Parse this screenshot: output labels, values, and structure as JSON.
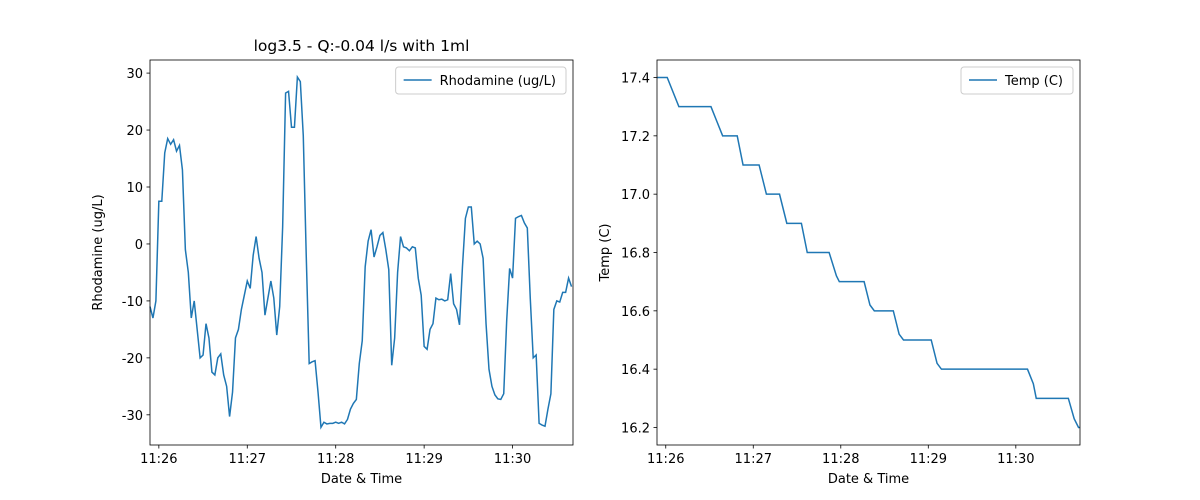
{
  "chart_data": [
    {
      "type": "line",
      "title": "log3.5 - Q:-0.04 l/s with 1ml",
      "x_label": "Date & Time",
      "y_label": "Rhodamine (ug/L)",
      "x": [
        1554,
        1556,
        1558,
        1560,
        1562,
        1564,
        1566,
        1568,
        1570,
        1572,
        1574,
        1576,
        1578,
        1580,
        1582,
        1584,
        1586,
        1588,
        1590,
        1592,
        1594,
        1596,
        1598,
        1600,
        1602,
        1604,
        1606,
        1608,
        1610,
        1612,
        1614,
        1616,
        1618,
        1620,
        1622,
        1624,
        1626,
        1628,
        1630,
        1632,
        1634,
        1636,
        1638,
        1640,
        1642,
        1644,
        1646,
        1648,
        1650,
        1652,
        1654,
        1656,
        1658,
        1660,
        1662,
        1664,
        1666,
        1668,
        1670,
        1672,
        1674,
        1676,
        1678,
        1680,
        1682,
        1684,
        1686,
        1688,
        1690,
        1692,
        1694,
        1696,
        1698,
        1700,
        1702,
        1704,
        1706,
        1708,
        1710,
        1712,
        1714,
        1716,
        1718,
        1720,
        1722,
        1724,
        1726,
        1728,
        1730,
        1732,
        1734,
        1736,
        1738,
        1740,
        1742,
        1744,
        1746,
        1748,
        1750,
        1752,
        1754,
        1756,
        1758,
        1760,
        1762,
        1764,
        1766,
        1768,
        1770,
        1772,
        1774,
        1776,
        1778,
        1780,
        1782,
        1784,
        1786,
        1788,
        1790,
        1792,
        1794,
        1796,
        1798,
        1800,
        1802,
        1804,
        1806,
        1808,
        1810,
        1812,
        1814,
        1816,
        1818,
        1820,
        1822,
        1824,
        1826,
        1828,
        1830,
        1832,
        1834,
        1836,
        1838,
        1840
      ],
      "series": [
        {
          "name": "Rhodamine (ug/L)",
          "color": "#1f77b4",
          "values": [
            -11,
            -13,
            -10,
            7.5,
            7.5,
            16,
            18.5,
            17.5,
            18.3,
            16.3,
            17.3,
            13,
            -1,
            -5,
            -13,
            -10,
            -15,
            -20,
            -19.5,
            -14,
            -16.5,
            -22.5,
            -23,
            -20,
            -19.3,
            -23,
            -25,
            -30.3,
            -26,
            -16.5,
            -15,
            -11.5,
            -9,
            -6.5,
            -7.8,
            -2,
            1.3,
            -2.5,
            -5,
            -12.5,
            -9.5,
            -6.5,
            -9.5,
            -16,
            -11,
            3,
            26.5,
            26.8,
            20.5,
            20.5,
            29.3,
            28.5,
            19,
            -2,
            -21,
            -20.7,
            -20.5,
            -26,
            -32.2,
            -31.3,
            -31.6,
            -31.5,
            -31.5,
            -31.3,
            -31.5,
            -31.3,
            -31.6,
            -30.8,
            -29,
            -28,
            -27.3,
            -21,
            -17,
            -4,
            0.5,
            2.5,
            -2.3,
            -0.5,
            1.5,
            2,
            -1,
            -4.5,
            -21.3,
            -16.5,
            -5,
            1.3,
            -0.5,
            -0.7,
            -1.2,
            -0.5,
            -0.7,
            -6,
            -9,
            -18,
            -18.5,
            -15,
            -14,
            -9.5,
            -9.8,
            -9.7,
            -10,
            -9.8,
            -5.2,
            -10.5,
            -11.5,
            -14.2,
            -4,
            4.5,
            6.5,
            6.5,
            0,
            0.5,
            0,
            -2.5,
            -14,
            -22,
            -25,
            -26.5,
            -27.2,
            -27.3,
            -26.3,
            -13.5,
            -4.3,
            -6,
            4.5,
            4.8,
            5,
            3.7,
            2.8,
            -9.5,
            -20,
            -19.5,
            -31.5,
            -31.8,
            -32,
            -29,
            -26.3,
            -11.5,
            -10,
            -10.2,
            -8.5,
            -8.5,
            -6,
            -7.5
          ]
        }
      ],
      "xlim": [
        1554,
        1841
      ],
      "ylim": [
        -35.3,
        32.3
      ],
      "xticks": [
        {
          "value": 1560,
          "label": "11:26"
        },
        {
          "value": 1620,
          "label": "11:27"
        },
        {
          "value": 1680,
          "label": "11:28"
        },
        {
          "value": 1740,
          "label": "11:29"
        },
        {
          "value": 1800,
          "label": "11:30"
        }
      ],
      "yticks": [
        -30,
        -20,
        -10,
        0,
        10,
        20,
        30
      ],
      "legend": "upper right"
    },
    {
      "type": "line",
      "x_label": "Date & Time",
      "y_label": "Temp (C)",
      "x": [
        1554,
        1561,
        1569,
        1591,
        1595,
        1599,
        1609,
        1613,
        1624,
        1629,
        1638,
        1643,
        1653,
        1657,
        1672,
        1677,
        1679,
        1696,
        1700,
        1703,
        1716,
        1720,
        1723,
        1742,
        1746,
        1749,
        1808,
        1812,
        1814,
        1836,
        1840,
        1843,
        1844
      ],
      "series": [
        {
          "name": "Temp (C)",
          "color": "#1f77b4",
          "values": [
            17.4,
            17.4,
            17.3,
            17.3,
            17.25,
            17.2,
            17.2,
            17.1,
            17.1,
            17.0,
            17.0,
            16.9,
            16.9,
            16.8,
            16.8,
            16.72,
            16.7,
            16.7,
            16.62,
            16.6,
            16.6,
            16.52,
            16.5,
            16.5,
            16.42,
            16.4,
            16.4,
            16.35,
            16.3,
            16.3,
            16.23,
            16.2,
            16.2
          ]
        }
      ],
      "xlim": [
        1554,
        1844
      ],
      "ylim": [
        16.14,
        17.46
      ],
      "xticks": [
        {
          "value": 1560,
          "label": "11:26"
        },
        {
          "value": 1620,
          "label": "11:27"
        },
        {
          "value": 1680,
          "label": "11:28"
        },
        {
          "value": 1740,
          "label": "11:29"
        },
        {
          "value": 1800,
          "label": "11:30"
        }
      ],
      "yticks": [
        16.2,
        16.4,
        16.6,
        16.8,
        {
          "value": 17,
          "label": "17.0"
        },
        17.2,
        17.4
      ],
      "legend": "upper right"
    }
  ]
}
